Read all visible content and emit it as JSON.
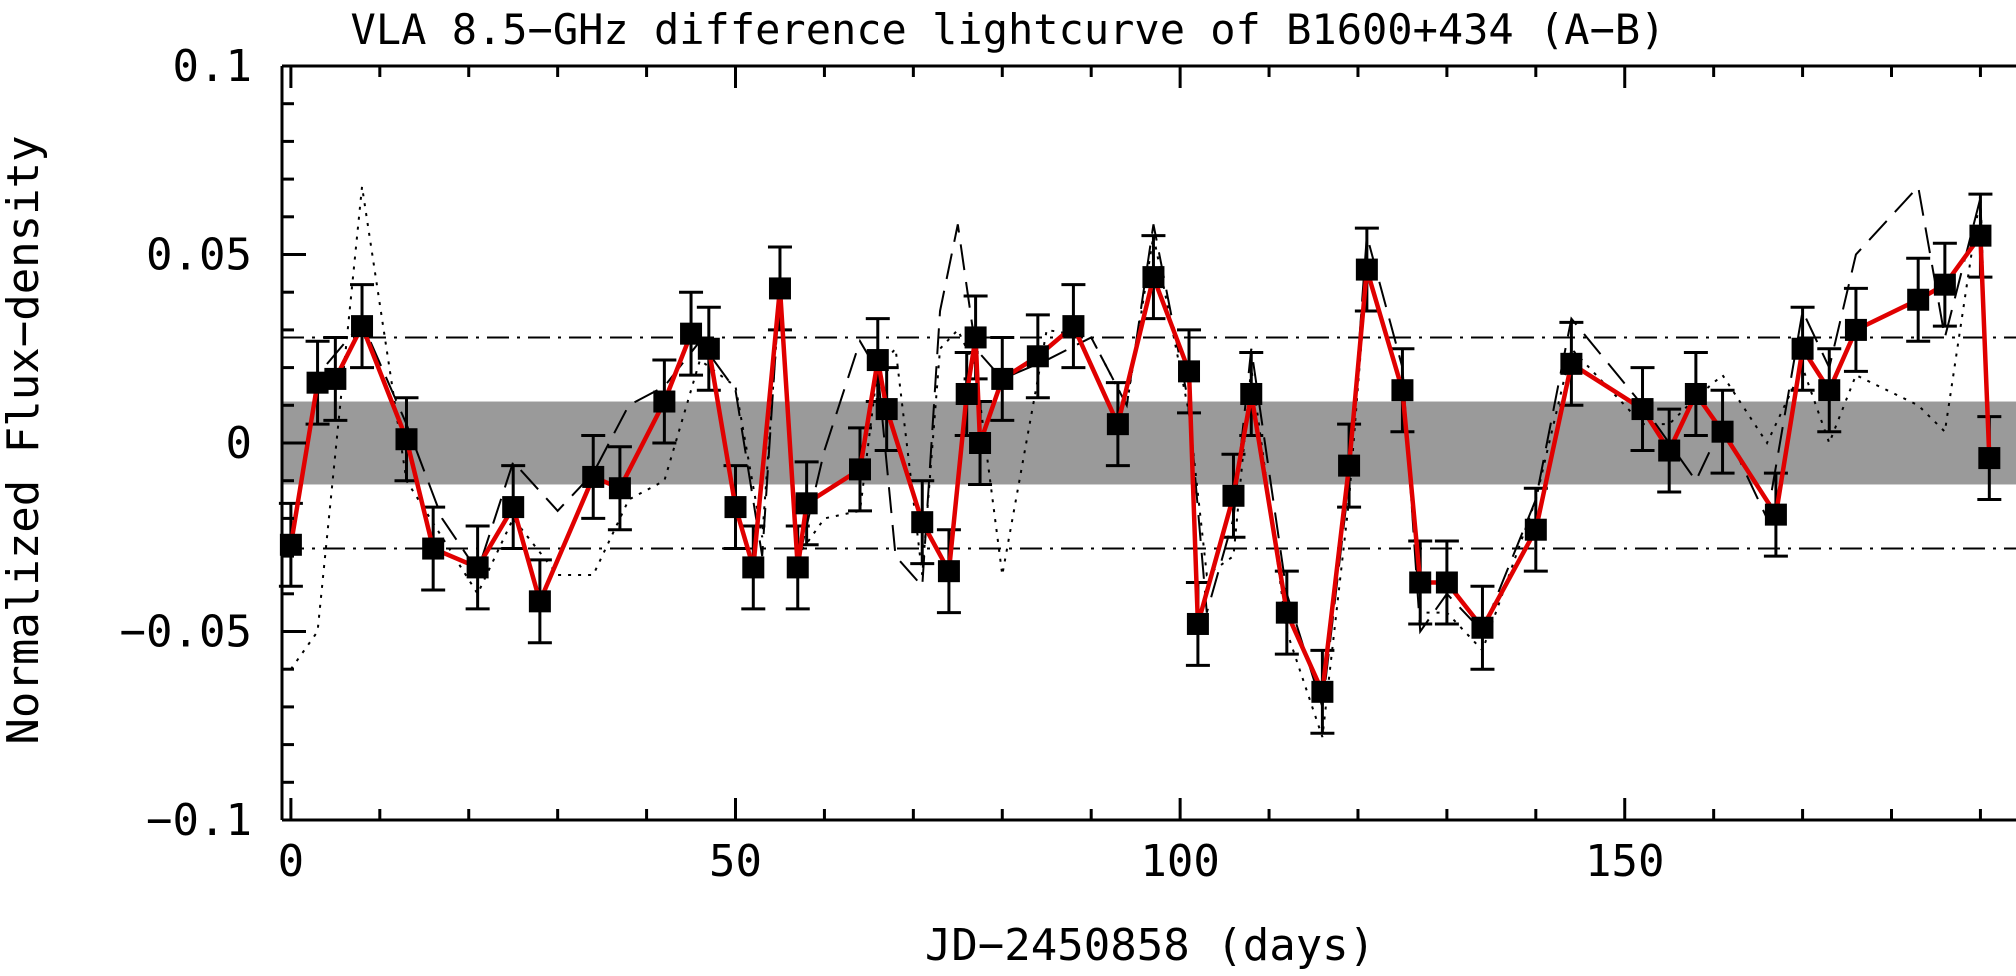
{
  "chart_data": {
    "type": "line",
    "title": "VLA 8.5−GHz difference lightcurve of B1600+434 (A−B)",
    "xlabel": "JD−2450858 (days)",
    "ylabel": "Normalized Flux−density",
    "xlim": [
      -1,
      194
    ],
    "ylim": [
      -0.1,
      0.1
    ],
    "x_ticks": [
      0,
      50,
      100,
      150
    ],
    "x_tick_labels": [
      "0",
      "50",
      "100",
      "150"
    ],
    "y_ticks": [
      -0.1,
      -0.05,
      0,
      0.05,
      0.1
    ],
    "y_tick_labels": [
      "−0.1",
      "−0.05",
      "0",
      "0.05",
      "0.1"
    ],
    "band": {
      "range": [
        -0.011,
        0.011
      ],
      "color": "#9a9a9a"
    },
    "reference_lines": [
      0.028,
      -0.028
    ],
    "grid": false,
    "colors": {
      "main_line": "#e00000",
      "markers": "#000000",
      "band": "#9a9a9a"
    },
    "series": [
      {
        "style": "red-solid-with-markers-and-errorbars",
        "x": [
          0,
          3,
          5,
          8,
          13,
          16,
          21,
          25,
          28,
          34,
          37,
          42,
          45,
          47,
          50,
          52,
          55,
          57,
          58,
          64,
          66,
          67,
          71,
          74,
          76,
          77,
          77.5,
          80,
          84,
          88,
          93,
          97,
          101,
          102,
          106,
          108,
          112,
          116,
          119,
          121,
          125,
          127,
          130,
          134,
          140,
          144,
          152,
          155,
          158,
          161,
          167,
          170,
          173,
          176,
          183,
          186,
          190,
          191
        ],
        "y": [
          -0.027,
          0.016,
          0.017,
          0.031,
          0.001,
          -0.028,
          -0.033,
          -0.017,
          -0.042,
          -0.009,
          -0.012,
          0.011,
          0.029,
          0.025,
          -0.017,
          -0.033,
          0.041,
          -0.033,
          -0.016,
          -0.007,
          0.022,
          0.009,
          -0.021,
          -0.034,
          0.013,
          0.028,
          0.0,
          0.017,
          0.023,
          0.031,
          0.005,
          0.044,
          0.019,
          -0.048,
          -0.014,
          0.013,
          -0.045,
          -0.066,
          -0.006,
          0.046,
          0.014,
          -0.037,
          -0.037,
          -0.049,
          -0.023,
          0.021,
          0.009,
          -0.002,
          0.013,
          0.003,
          -0.019,
          0.025,
          0.014,
          0.03,
          0.038,
          0.042,
          0.055,
          -0.004
        ],
        "yerr": 0.011
      },
      {
        "style": "black-dashed",
        "x": [
          0,
          3,
          8,
          13,
          17,
          21,
          25,
          30,
          34,
          38,
          42,
          46,
          50,
          53,
          55,
          57,
          60,
          64,
          66,
          68,
          71,
          73,
          75,
          77,
          80,
          85,
          90,
          94,
          97,
          101,
          103,
          106,
          108,
          112,
          116,
          119,
          121,
          125,
          127,
          130,
          134,
          140,
          144,
          152,
          155,
          158,
          161,
          166,
          170,
          173,
          176,
          183,
          186,
          190,
          191
        ],
        "y": [
          -0.028,
          0.018,
          0.032,
          0.005,
          -0.02,
          -0.034,
          -0.005,
          -0.018,
          -0.008,
          0.01,
          0.015,
          0.027,
          0.014,
          -0.03,
          0.042,
          -0.032,
          -0.002,
          0.027,
          0.019,
          -0.03,
          -0.038,
          0.035,
          0.058,
          0.025,
          0.017,
          0.022,
          0.028,
          0.01,
          0.058,
          0.01,
          -0.045,
          -0.02,
          0.025,
          -0.04,
          -0.07,
          -0.01,
          0.055,
          0.02,
          -0.05,
          -0.04,
          -0.05,
          -0.015,
          0.033,
          0.01,
          0.0,
          -0.01,
          0.005,
          -0.02,
          0.035,
          0.02,
          0.05,
          0.068,
          0.028,
          0.065,
          -0.01
        ]
      },
      {
        "style": "black-dotted",
        "x": [
          0,
          3,
          8,
          13,
          17,
          21,
          25,
          30,
          34,
          38,
          42,
          46,
          50,
          53,
          55,
          57,
          60,
          64,
          66,
          68,
          71,
          73,
          75,
          77,
          80,
          85,
          90,
          94,
          97,
          101,
          103,
          106,
          108,
          112,
          116,
          119,
          121,
          125,
          127,
          130,
          134,
          140,
          144,
          152,
          155,
          158,
          161,
          166,
          170,
          173,
          176,
          183,
          186,
          190,
          191
        ],
        "y": [
          -0.06,
          -0.05,
          0.068,
          -0.01,
          -0.025,
          -0.04,
          -0.02,
          -0.035,
          -0.035,
          -0.015,
          -0.01,
          0.022,
          0.015,
          -0.025,
          0.04,
          -0.03,
          -0.02,
          -0.018,
          0.02,
          0.025,
          -0.035,
          0.025,
          0.03,
          0.02,
          -0.035,
          0.03,
          0.028,
          0.01,
          0.055,
          0.008,
          -0.035,
          -0.03,
          0.02,
          -0.05,
          -0.078,
          -0.015,
          0.045,
          0.015,
          -0.045,
          -0.045,
          -0.055,
          -0.015,
          0.025,
          0.005,
          0.005,
          0.012,
          0.018,
          0.0,
          0.02,
          0.0,
          0.018,
          0.01,
          0.003,
          0.066,
          -0.008
        ]
      }
    ]
  }
}
